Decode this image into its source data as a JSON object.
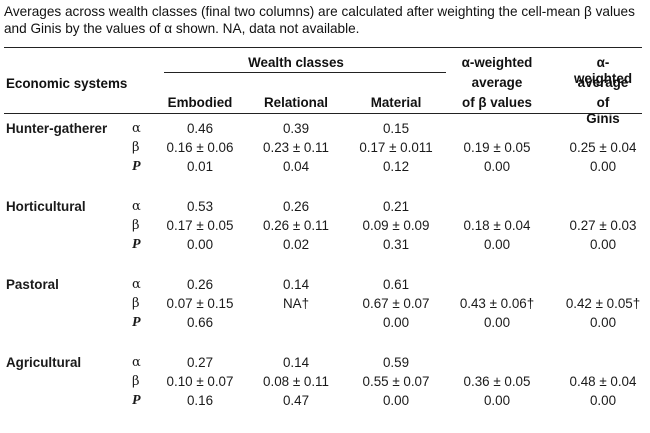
{
  "caption": "Averages across wealth classes (final two columns) are calculated after weighting the cell-mean β values and Ginis by the values of α shown. NA, data not available.",
  "headers": {
    "economic_systems": "Economic systems",
    "wealth_classes": "Wealth classes",
    "embodied": "Embodied",
    "relational": "Relational",
    "material": "Material",
    "alpha_beta": [
      "α-weighted",
      "average",
      "of β values"
    ],
    "alpha_gini": [
      "α-weighted",
      "average",
      "of Ginis"
    ]
  },
  "systems": [
    {
      "name": "Hunter-gatherer",
      "rows": [
        {
          "symbol": "α",
          "embodied": "0.46",
          "relational": "0.39",
          "material": "0.15",
          "avg_beta": "",
          "avg_gini": ""
        },
        {
          "symbol": "β",
          "embodied": "0.16 ± 0.06",
          "relational": "0.23 ± 0.11",
          "material": "0.17 ± 0.011",
          "avg_beta": "0.19 ± 0.05",
          "avg_gini": "0.25 ± 0.04"
        },
        {
          "symbol": "P",
          "embodied": "0.01",
          "relational": "0.04",
          "material": "0.12",
          "avg_beta": "0.00",
          "avg_gini": "0.00"
        }
      ]
    },
    {
      "name": "Horticultural",
      "rows": [
        {
          "symbol": "α",
          "embodied": "0.53",
          "relational": "0.26",
          "material": "0.21",
          "avg_beta": "",
          "avg_gini": ""
        },
        {
          "symbol": "β",
          "embodied": "0.17 ± 0.05",
          "relational": "0.26 ± 0.11",
          "material": "0.09 ± 0.09",
          "avg_beta": "0.18 ± 0.04",
          "avg_gini": "0.27 ± 0.03"
        },
        {
          "symbol": "P",
          "embodied": "0.00",
          "relational": "0.02",
          "material": "0.31",
          "avg_beta": "0.00",
          "avg_gini": "0.00"
        }
      ]
    },
    {
      "name": "Pastoral",
      "rows": [
        {
          "symbol": "α",
          "embodied": "0.26",
          "relational": "0.14",
          "material": "0.61",
          "avg_beta": "",
          "avg_gini": ""
        },
        {
          "symbol": "β",
          "embodied": "0.07 ± 0.15",
          "relational": "NA†",
          "material": "0.67 ± 0.07",
          "avg_beta": "0.43 ± 0.06†",
          "avg_gini": "0.42 ± 0.05†"
        },
        {
          "symbol": "P",
          "embodied": "0.66",
          "relational": "",
          "material": "0.00",
          "avg_beta": "0.00",
          "avg_gini": "0.00"
        }
      ]
    },
    {
      "name": "Agricultural",
      "rows": [
        {
          "symbol": "α",
          "embodied": "0.27",
          "relational": "0.14",
          "material": "0.59",
          "avg_beta": "",
          "avg_gini": ""
        },
        {
          "symbol": "β",
          "embodied": "0.10 ± 0.07",
          "relational": "0.08 ± 0.11",
          "material": "0.55 ± 0.07",
          "avg_beta": "0.36 ± 0.05",
          "avg_gini": "0.48 ± 0.04"
        },
        {
          "symbol": "P",
          "embodied": "0.16",
          "relational": "0.47",
          "material": "0.00",
          "avg_beta": "0.00",
          "avg_gini": "0.00"
        }
      ]
    }
  ]
}
